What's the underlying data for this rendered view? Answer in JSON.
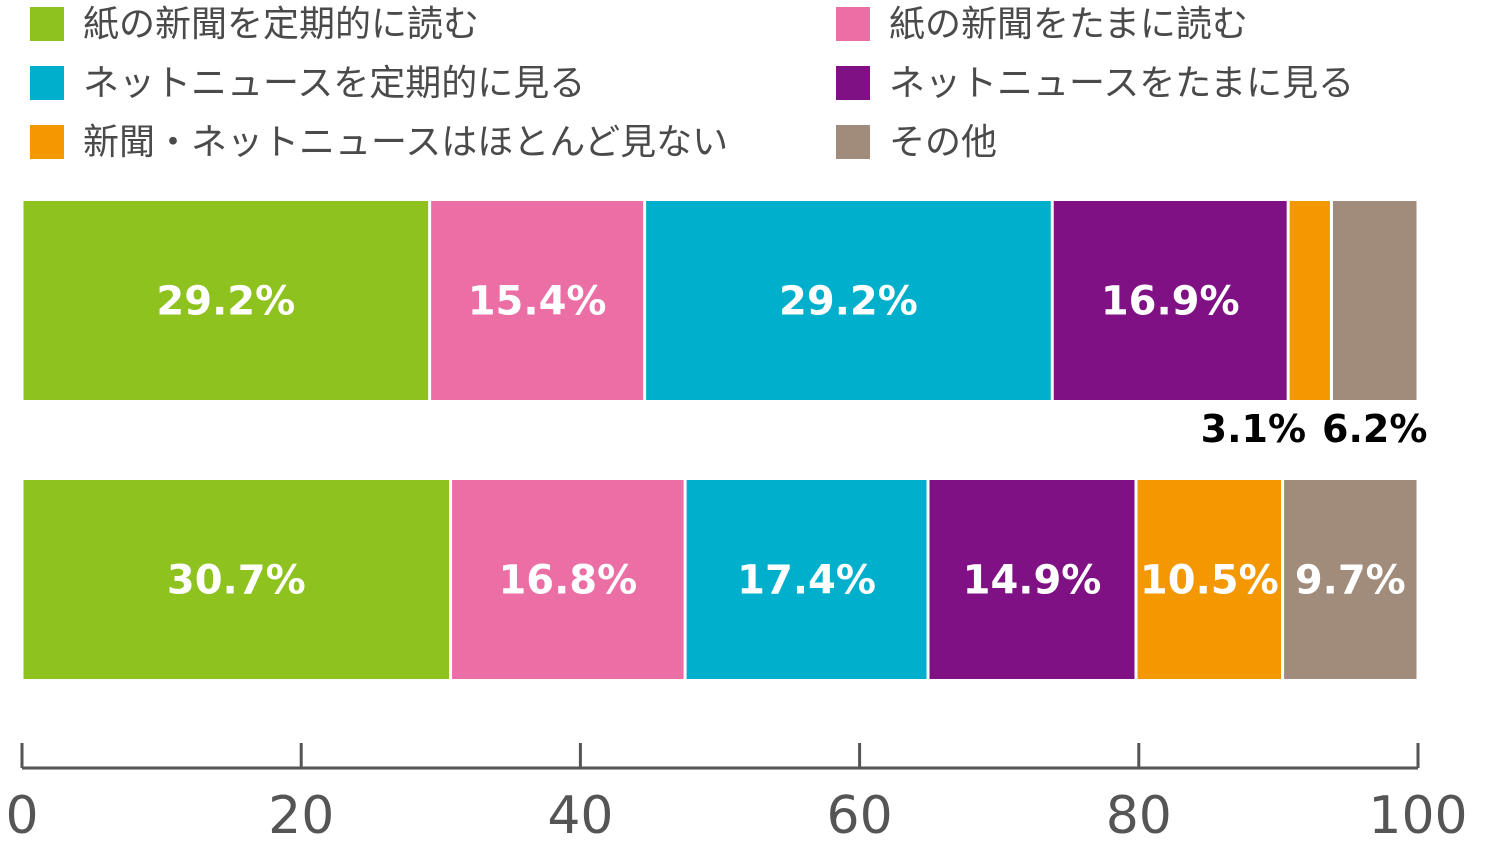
{
  "chart_data": {
    "type": "bar",
    "orientation": "horizontal",
    "stacked": true,
    "legend_position": "top",
    "grid": false,
    "xlim": [
      0,
      100
    ],
    "x_ticks": [
      "0",
      "20",
      "40",
      "60",
      "80",
      "100"
    ],
    "categories": [
      "",
      ""
    ],
    "series": [
      {
        "name": "紙の新聞を定期的に読む",
        "color": "#8dc21f",
        "values": [
          29.2,
          30.7
        ],
        "labels": [
          "29.2%",
          "30.7%"
        ]
      },
      {
        "name": "紙の新聞をたまに読む",
        "color": "#eb6ea5",
        "values": [
          15.4,
          16.8
        ],
        "labels": [
          "15.4%",
          "16.8%"
        ]
      },
      {
        "name": "ネットニュースを定期的に見る",
        "color": "#00afcc",
        "values": [
          29.2,
          17.4
        ],
        "labels": [
          "29.2%",
          "17.4%"
        ]
      },
      {
        "name": "ネットニュースをたまに見る",
        "color": "#7f1184",
        "values": [
          16.9,
          14.9
        ],
        "labels": [
          "16.9%",
          "14.9%"
        ]
      },
      {
        "name": "新聞・ネットニュースはほとんど見ない",
        "color": "#f39800",
        "values": [
          3.1,
          10.5
        ],
        "labels": [
          "3.1%",
          "10.5%"
        ]
      },
      {
        "name": "その他",
        "color": "#a18b7a",
        "values": [
          6.2,
          9.7
        ],
        "labels": [
          "6.2%",
          "9.7%"
        ]
      }
    ]
  }
}
